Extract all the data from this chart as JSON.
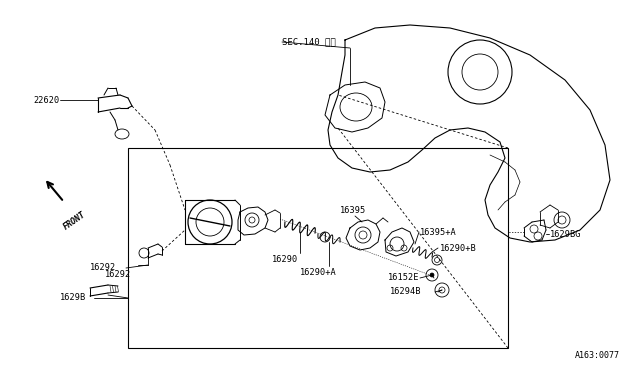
{
  "bg_color": "#ffffff",
  "line_color": "#000000",
  "fig_width": 6.4,
  "fig_height": 3.72,
  "diagram_id": "A163:0077",
  "sec_label": "SEC.140 参照",
  "front_label": "FRONT"
}
